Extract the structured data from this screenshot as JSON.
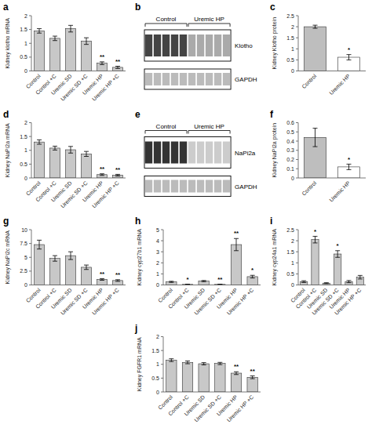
{
  "chart_data": [
    {
      "type": "bar",
      "title": "a",
      "ylabel": "Kidney klotho mRNA",
      "categories": [
        "Control",
        "Control +C",
        "Uremic SD",
        "Uremic SD +C",
        "Uremic HP",
        "Uremic HP +C"
      ],
      "values": [
        1.45,
        1.18,
        1.53,
        1.08,
        0.28,
        0.13
      ],
      "errors": [
        0.08,
        0.08,
        0.12,
        0.12,
        0.05,
        0.04
      ],
      "significance": [
        null,
        null,
        null,
        null,
        "**",
        "**"
      ],
      "ylim": [
        0,
        2.0
      ],
      "yticks": [
        0.0,
        0.5,
        1.0,
        1.5,
        2.0
      ],
      "color": "#C8C8C8"
    },
    {
      "type": "blot",
      "title": "b",
      "categories": [
        "Control",
        "Uremic HP"
      ],
      "values": [
        5,
        5
      ],
      "series": [
        {
          "name": "Klotho",
          "colors": [
            "#444444",
            "#AAAAAA"
          ]
        },
        {
          "name": "GAPDH",
          "color": "#BBBBBB"
        }
      ]
    },
    {
      "type": "bar",
      "title": "c",
      "ylabel": "Kidney Klotho protein",
      "categories": [
        "Control",
        "Uremic HP"
      ],
      "values": [
        2.0,
        0.62
      ],
      "errors": [
        0.07,
        0.12
      ],
      "significance": [
        null,
        "*"
      ],
      "ylim": [
        0,
        2.5
      ],
      "yticks": [
        0.0,
        0.5,
        1.0,
        1.5,
        2.0,
        2.5
      ],
      "colors": [
        "#BEBEBE",
        "#FFFFFF"
      ]
    },
    {
      "type": "bar",
      "title": "d",
      "ylabel": "Kidney NaPi2a mRNA",
      "categories": [
        "Control",
        "Control +C",
        "Uremic SD",
        "Uremic SD +C",
        "Uremic HP",
        "Uremic HP +C"
      ],
      "values": [
        1.3,
        1.08,
        1.02,
        0.87,
        0.12,
        0.1
      ],
      "errors": [
        0.08,
        0.07,
        0.12,
        0.09,
        0.03,
        0.03
      ],
      "significance": [
        null,
        null,
        null,
        null,
        "**",
        "**"
      ],
      "ylim": [
        0,
        2.0
      ],
      "yticks": [
        0.0,
        0.5,
        1.0,
        1.5,
        2.0
      ],
      "color": "#C8C8C8"
    },
    {
      "type": "blot",
      "title": "e",
      "categories": [
        "Control",
        "Uremic HP"
      ],
      "values": [
        5,
        5
      ],
      "series": [
        {
          "name": "NaPi2a",
          "colors": [
            "#333333",
            "#CCCCCC"
          ]
        },
        {
          "name": "GAPDH",
          "color": "#BBBBBB"
        }
      ]
    },
    {
      "type": "bar",
      "title": "f",
      "ylabel": "Kidney NaPi2a protein",
      "categories": [
        "Control",
        "Uremic HP"
      ],
      "values": [
        0.44,
        0.12
      ],
      "errors": [
        0.1,
        0.03
      ],
      "significance": [
        null,
        "*"
      ],
      "ylim": [
        0,
        0.6
      ],
      "yticks": [
        0.0,
        0.1,
        0.2,
        0.3,
        0.4,
        0.5,
        0.6
      ],
      "colors": [
        "#BEBEBE",
        "#FFFFFF"
      ]
    },
    {
      "type": "bar",
      "title": "g",
      "ylabel": "Kidney NaPi2c mRNA",
      "categories": [
        "Control",
        "Control +C",
        "Uremic SD",
        "Uremic SD +C",
        "Uremic HP",
        "Uremic HP +C"
      ],
      "values": [
        7.3,
        4.8,
        5.3,
        3.2,
        1.0,
        0.8
      ],
      "errors": [
        0.8,
        0.5,
        0.7,
        0.4,
        0.15,
        0.15
      ],
      "significance": [
        null,
        null,
        null,
        null,
        "**",
        "**"
      ],
      "ylim": [
        0,
        10.0
      ],
      "yticks": [
        0.0,
        2.5,
        5.0,
        7.5,
        10.0
      ],
      "color": "#C8C8C8"
    },
    {
      "type": "bar",
      "title": "h",
      "ylabel": "Kidney cyp27b1 mRNA",
      "categories": [
        "Control",
        "Control +C",
        "Uremic SD",
        "Uremic SD +C",
        "Uremic HP",
        "Uremic HP +C"
      ],
      "values": [
        0.28,
        0.05,
        0.35,
        0.05,
        3.65,
        0.75
      ],
      "errors": [
        0.05,
        0.01,
        0.05,
        0.01,
        0.55,
        0.12
      ],
      "significance": [
        null,
        "*",
        null,
        "**",
        "**",
        "*"
      ],
      "ylim": [
        0,
        5
      ],
      "yticks": [
        0,
        1,
        2,
        3,
        4,
        5
      ],
      "color": "#C8C8C8"
    },
    {
      "type": "bar",
      "title": "i",
      "ylabel": "Kidney cyp24a1 mRNA",
      "categories": [
        "Control",
        "Control +C",
        "Uremic SD",
        "Uremic SD +C",
        "Uremic HP",
        "Uremic HP +C"
      ],
      "values": [
        0.15,
        2.05,
        0.08,
        1.4,
        0.15,
        0.35
      ],
      "errors": [
        0.04,
        0.15,
        0.02,
        0.15,
        0.05,
        0.08
      ],
      "significance": [
        null,
        "*",
        null,
        "*",
        null,
        null
      ],
      "ylim": [
        0,
        2.5
      ],
      "yticks": [
        0.0,
        0.5,
        1.0,
        1.5,
        2.0,
        2.5
      ],
      "color": "#C8C8C8"
    },
    {
      "type": "bar",
      "title": "j",
      "ylabel": "Kidney FGFR1 mRNA",
      "categories": [
        "Control",
        "Control +C",
        "Uremic SD",
        "Uremic SD +C",
        "Uremic HP",
        "Uremic HP +C"
      ],
      "values": [
        1.15,
        1.07,
        1.02,
        1.03,
        0.68,
        0.53
      ],
      "errors": [
        0.05,
        0.05,
        0.04,
        0.04,
        0.05,
        0.05
      ],
      "significance": [
        null,
        null,
        null,
        null,
        "**",
        "**"
      ],
      "ylim": [
        0,
        2.0
      ],
      "yticks": [
        0.0,
        0.5,
        1.0,
        1.5,
        2.0
      ],
      "color": "#C8C8C8"
    }
  ]
}
